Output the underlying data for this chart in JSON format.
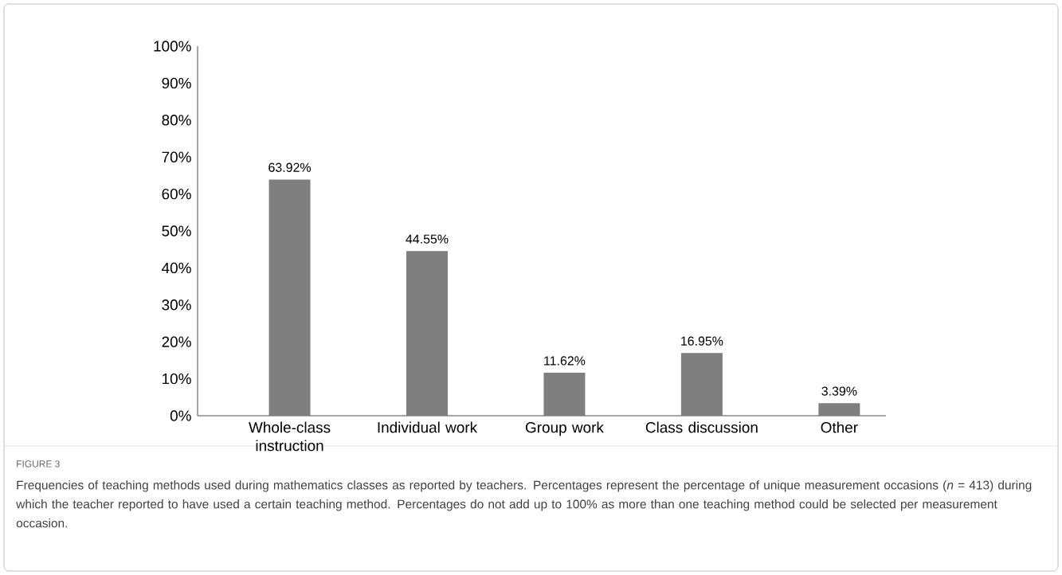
{
  "chart_data": {
    "type": "bar",
    "categories": [
      "Whole-class instruction",
      "Individual work",
      "Group work",
      "Class discussion",
      "Other"
    ],
    "values": [
      63.92,
      44.55,
      11.62,
      16.95,
      3.39
    ],
    "value_labels": [
      "63.92%",
      "44.55%",
      "11.62%",
      "16.95%",
      "3.39%"
    ],
    "color": "#7f7f7f",
    "ylim": [
      0,
      100
    ],
    "yticks": [
      {
        "value": 0,
        "label": "0%"
      },
      {
        "value": 10,
        "label": "10%"
      },
      {
        "value": 20,
        "label": "20%"
      },
      {
        "value": 30,
        "label": "30%"
      },
      {
        "value": 40,
        "label": "40%"
      },
      {
        "value": 50,
        "label": "50%"
      },
      {
        "value": 60,
        "label": "60%"
      },
      {
        "value": 70,
        "label": "70%"
      },
      {
        "value": 80,
        "label": "80%"
      },
      {
        "value": 90,
        "label": "90%"
      },
      {
        "value": 100,
        "label": "100%"
      }
    ],
    "annotations": [
      "FIGURE 3",
      "Frequencies of teaching methods used during mathematics classes as reported by teachers. Percentages represent the percentage of unique measurement occasions (*n* = 413) during which the teacher reported to have used a certain teaching method. Percentages do not add up to 100% as more than one teaching method could be selected per measurement occasion."
    ]
  }
}
